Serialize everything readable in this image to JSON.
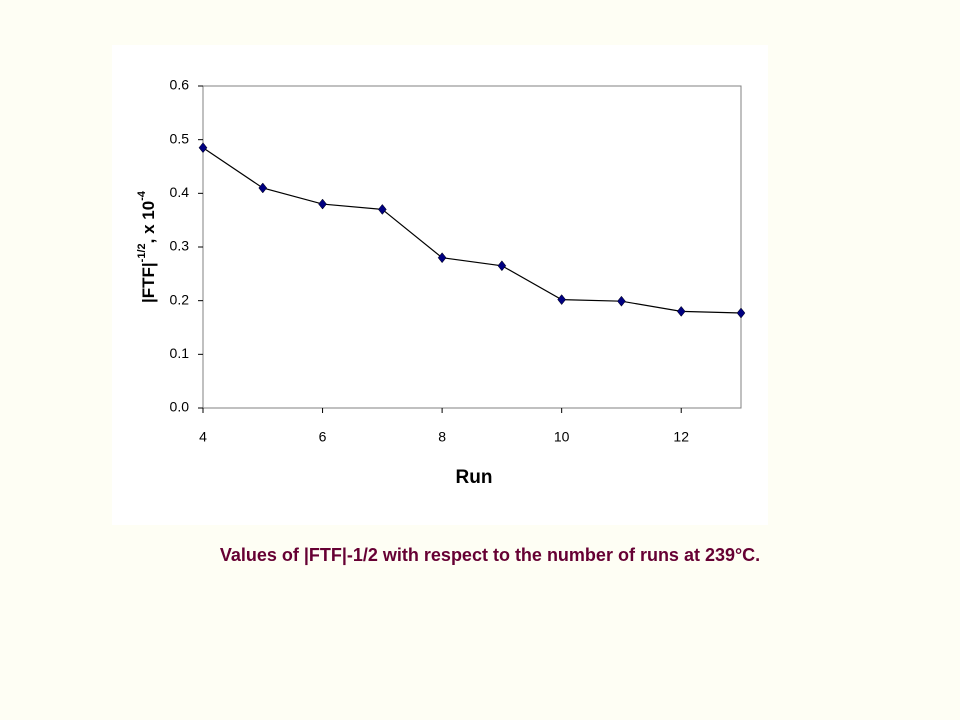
{
  "chart_data": {
    "type": "line",
    "ylabel_parts": [
      "|FTF|",
      "-1/2",
      ", x 10",
      "-4"
    ],
    "xlabel": "Run",
    "caption": "Values of |FTF|-1/2 with respect to the number of runs at 239°C.",
    "x": [
      4,
      5,
      6,
      7,
      8,
      9,
      10,
      11,
      12,
      13
    ],
    "series": [
      {
        "name": "|FTF|-1/2",
        "color": "#000000",
        "marker_color": "#000080",
        "values": [
          0.485,
          0.41,
          0.38,
          0.37,
          0.28,
          0.265,
          0.202,
          0.199,
          0.18,
          0.177
        ]
      }
    ],
    "xlim": [
      4,
      13
    ],
    "xticks": [
      4,
      6,
      8,
      10,
      12
    ],
    "ylim": [
      0,
      0.6
    ],
    "yticks": [
      {
        "value": 0,
        "label": "0.0"
      },
      0.1,
      0.2,
      0.3,
      0.4,
      0.5,
      0.6
    ],
    "grid": false
  }
}
